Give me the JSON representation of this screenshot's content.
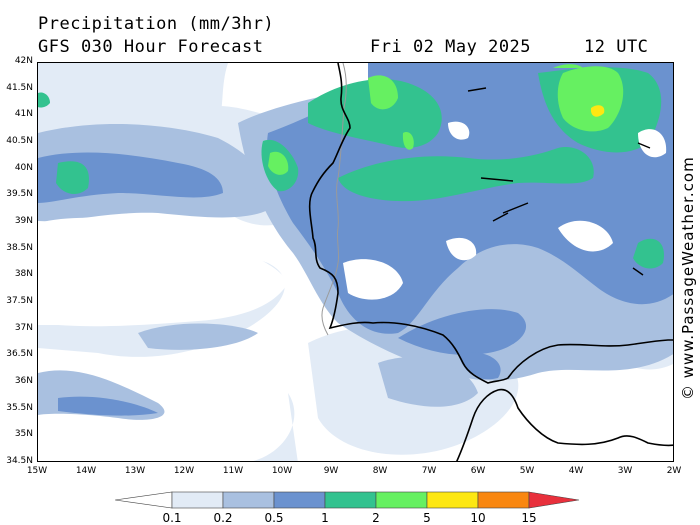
{
  "header": {
    "title": "Precipitation (mm/3hr)",
    "model": "GFS 030 Hour Forecast",
    "date": "Fri 02 May 2025",
    "time": "12 UTC"
  },
  "watermark": "© www.PassageWeather.com",
  "map": {
    "lat_labels": [
      "42N",
      "41.5N",
      "41N",
      "40.5N",
      "40N",
      "39.5N",
      "39N",
      "38.5N",
      "38N",
      "37.5N",
      "37N",
      "36.5N",
      "36N",
      "35.5N",
      "35N",
      "34.5N"
    ],
    "lon_labels": [
      "15W",
      "14W",
      "13W",
      "12W",
      "11W",
      "10W",
      "9W",
      "8W",
      "7W",
      "6W",
      "5W",
      "4W",
      "3W",
      "2W"
    ],
    "lat_range": [
      34.5,
      42
    ],
    "lon_range": [
      -15,
      -2
    ]
  },
  "legend": {
    "labels": [
      "0.1",
      "0.2",
      "0.5",
      "1",
      "2",
      "5",
      "10",
      "15"
    ],
    "colors": [
      "#e2ebf6",
      "#a9c0e0",
      "#6b92cf",
      "#33c28f",
      "#66f061",
      "#fde712",
      "#f98710",
      "#e8303c"
    ]
  }
}
